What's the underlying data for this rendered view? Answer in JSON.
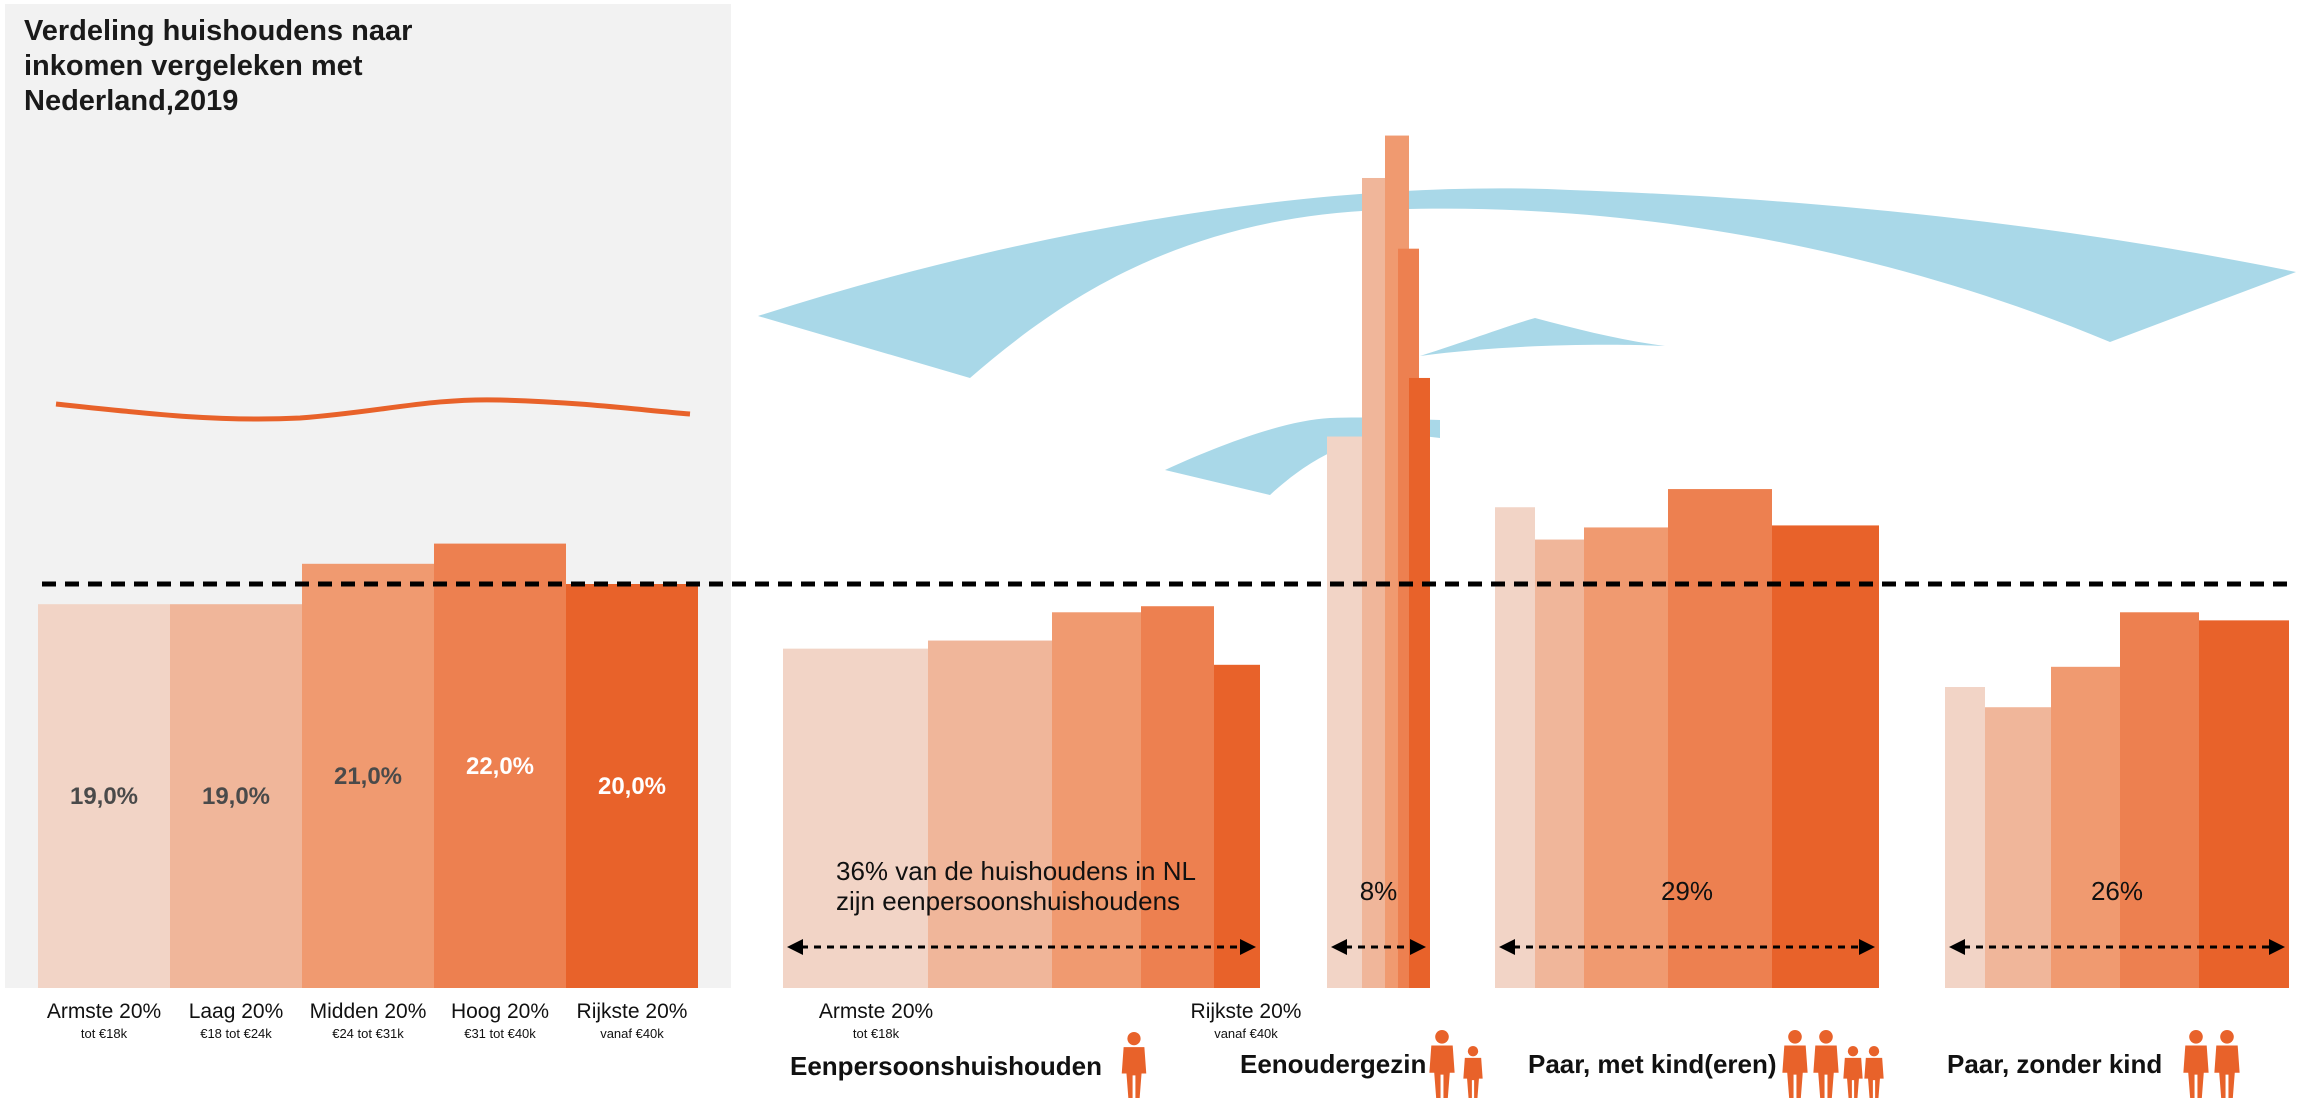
{
  "title": "Verdeling huishoudens naar\ninkomen vergeleken met\nNederland,2019",
  "colors": {
    "q1": "#f2d4c6",
    "q2": "#f0b69a",
    "q3": "#f09a70",
    "q4": "#ed8050",
    "q5": "#e8622a",
    "accent_line": "#e8622a",
    "shape_blue": "#a9d8e8",
    "panel": "#f2f2f2"
  },
  "icons": [
    "person-icon",
    "adult-child-icon",
    "family-icon",
    "couple-icon"
  ],
  "chart_data": {
    "type": "bar",
    "reference_line": "dashed",
    "nl": {
      "categories": [
        "Armste 20%",
        "Laag 20%",
        "Midden 20%",
        "Hoog 20%",
        "Rijkste 20%"
      ],
      "subs": [
        "tot €18k",
        "€18 tot €24k",
        "€24 tot €31k",
        "€31 tot €40k",
        "vanaf €40k"
      ],
      "values": [
        19.0,
        19.0,
        21.0,
        22.0,
        20.0
      ],
      "value_labels": [
        "19,0%",
        "19,0%",
        "21,0%",
        "22,0%",
        "20,0%"
      ]
    },
    "groups": [
      {
        "name": "Eenpersoonshuishouden",
        "share_label": "36% van de huishoudens in NL\nzijn eenpersoonshuishoudens",
        "axis_start": "Armste 20%",
        "axis_start_sub": "tot €18k",
        "axis_end": "Rijkste 20%",
        "axis_end_sub": "vanaf €40k",
        "values": [
          16.8,
          17.2,
          18.6,
          18.9,
          16.0
        ]
      },
      {
        "name": "Eenoudergezin",
        "share_label": "8%",
        "values": [
          27.3,
          40.1,
          42.2,
          36.6,
          30.2
        ]
      },
      {
        "name": "Paar, met kind(eren)",
        "share_label": "29%",
        "values": [
          23.8,
          22.2,
          22.8,
          24.7,
          22.9
        ]
      },
      {
        "name": "Paar, zonder kind",
        "share_label": "26%",
        "values": [
          14.9,
          13.9,
          15.9,
          18.6,
          18.2
        ]
      }
    ]
  }
}
